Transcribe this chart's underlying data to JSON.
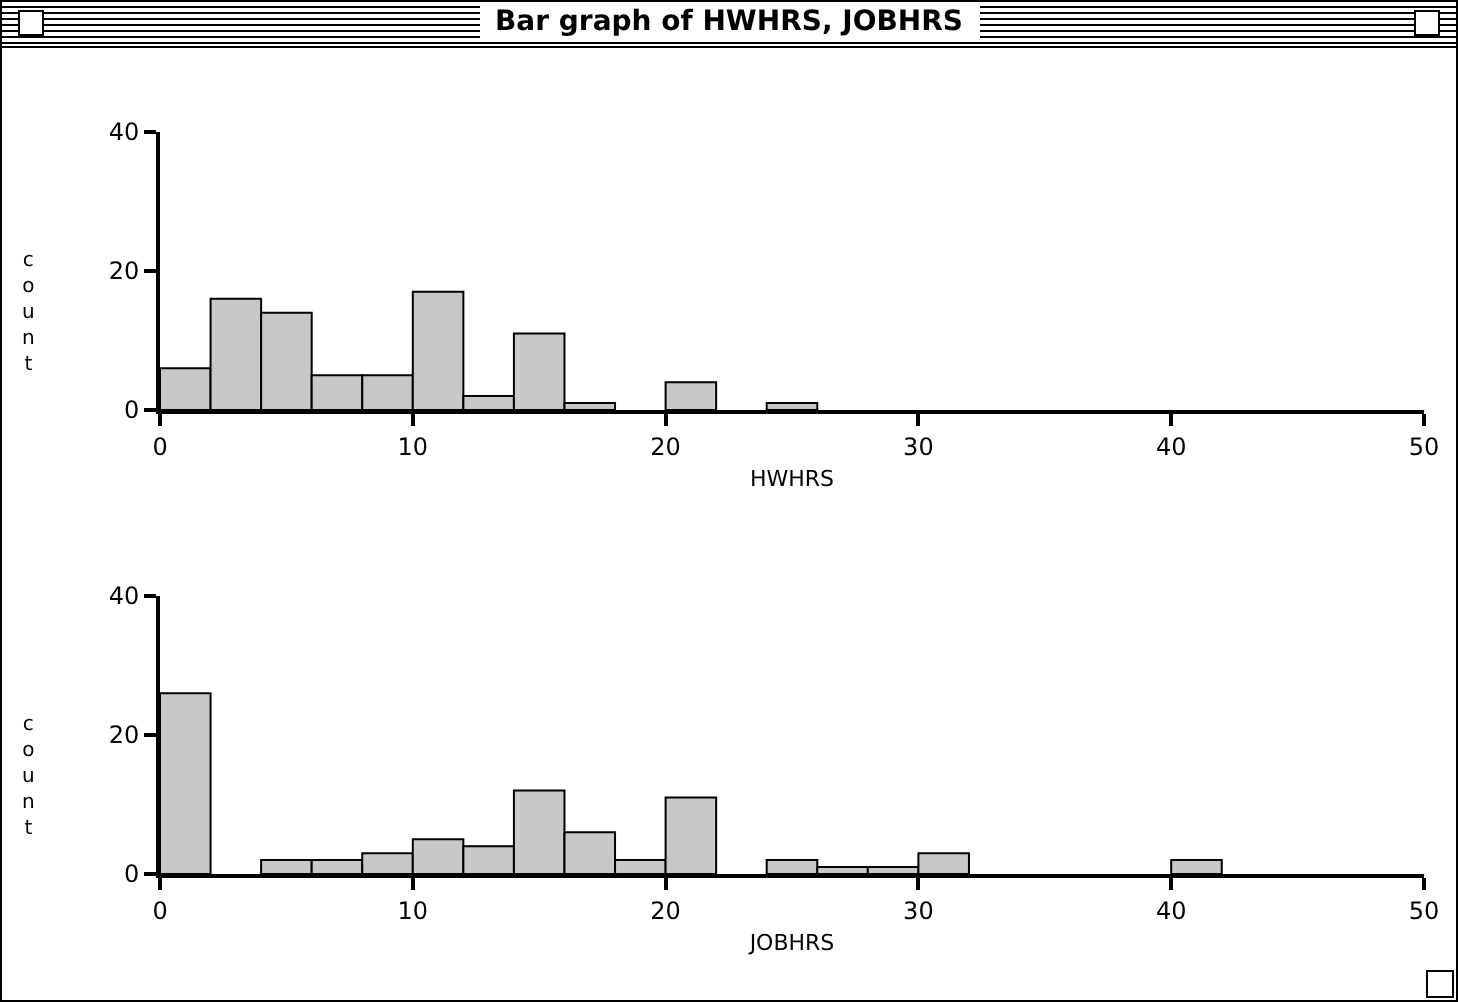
{
  "chart_data": [
    {
      "type": "histogram",
      "title": "Bar graph of HWHRS, JOBHRS",
      "xlabel": "HWHRS",
      "ylabel": "count",
      "color": "#c8c8c8",
      "bins": [
        0,
        2,
        4,
        6,
        8,
        10,
        12,
        14,
        16,
        18,
        20,
        22,
        24,
        26,
        28,
        30,
        32,
        34,
        36,
        38,
        40,
        42,
        44,
        46,
        48,
        50
      ],
      "values": [
        6,
        16,
        14,
        5,
        5,
        17,
        2,
        11,
        1,
        0,
        4,
        0,
        1,
        0,
        0,
        0,
        0,
        0,
        0,
        0,
        0,
        0,
        0,
        0,
        0
      ],
      "xlim": [
        0,
        50
      ],
      "xticks": [
        0,
        10,
        20,
        30,
        40,
        50
      ],
      "ylim": [
        0,
        40
      ],
      "yticks": [
        0,
        20,
        40
      ]
    },
    {
      "type": "histogram",
      "xlabel": "JOBHRS",
      "ylabel": "count",
      "color": "#c8c8c8",
      "bins": [
        0,
        2,
        4,
        6,
        8,
        10,
        12,
        14,
        16,
        18,
        20,
        22,
        24,
        26,
        28,
        30,
        32,
        34,
        36,
        38,
        40,
        42,
        44,
        46,
        48,
        50
      ],
      "values": [
        26,
        0,
        2,
        2,
        3,
        5,
        4,
        12,
        6,
        2,
        11,
        0,
        2,
        1,
        1,
        3,
        0,
        0,
        0,
        0,
        2,
        0,
        0,
        0,
        0
      ],
      "xlim": [
        0,
        50
      ],
      "xticks": [
        0,
        10,
        20,
        30,
        40,
        50
      ],
      "ylim": [
        0,
        40
      ],
      "yticks": [
        0,
        20,
        40
      ]
    }
  ]
}
